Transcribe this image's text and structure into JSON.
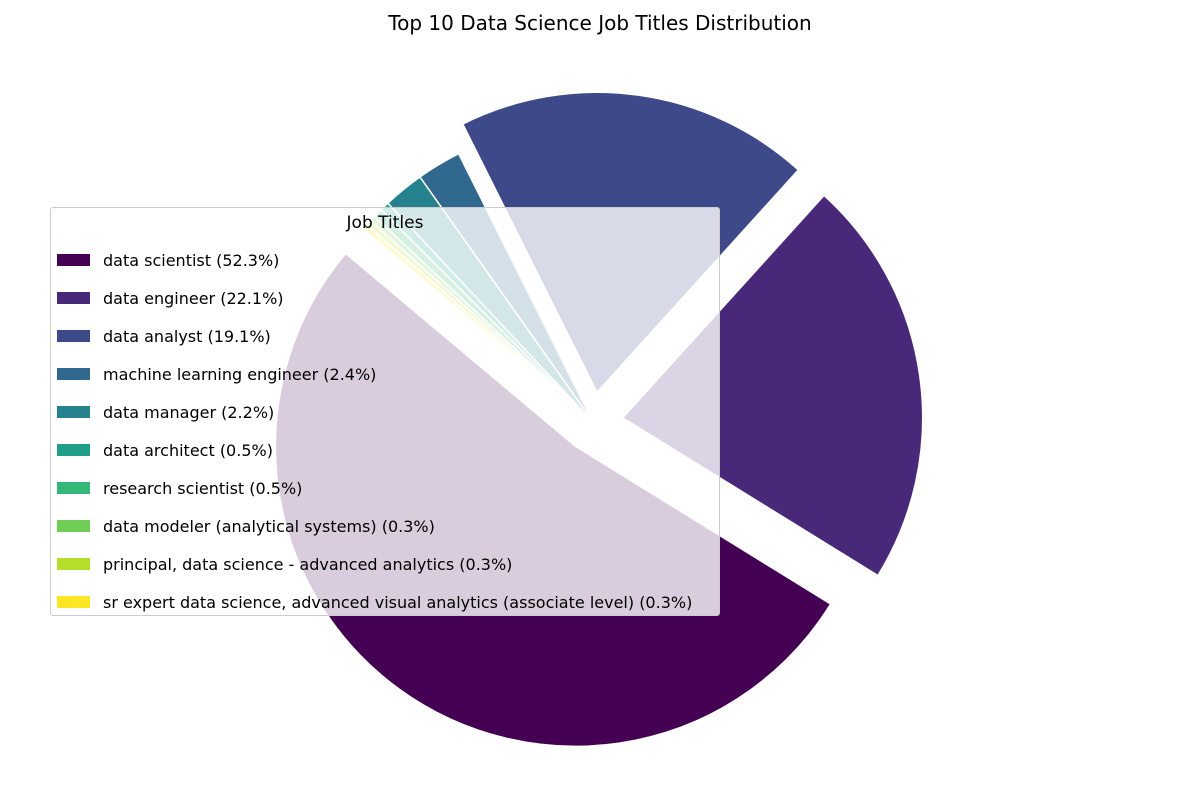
{
  "chart_data": {
    "type": "pie",
    "title": "Top 10 Data Science Job Titles Distribution",
    "legend_title": "Job Titles",
    "legend_placement": "center-left",
    "slices": [
      {
        "label": "data scientist",
        "value": 52.3,
        "label_text": "data scientist (52.3%)",
        "color": "#440154",
        "exploded": true
      },
      {
        "label": "data engineer",
        "value": 22.1,
        "label_text": "data engineer (22.1%)",
        "color": "#482878",
        "exploded": true
      },
      {
        "label": "data analyst",
        "value": 19.1,
        "label_text": "data analyst (19.1%)",
        "color": "#3e4989",
        "exploded": true
      },
      {
        "label": "machine learning engineer",
        "value": 2.4,
        "label_text": "machine learning engineer (2.4%)",
        "color": "#31688e",
        "exploded": false
      },
      {
        "label": "data manager",
        "value": 2.2,
        "label_text": "data manager (2.2%)",
        "color": "#26828e",
        "exploded": false
      },
      {
        "label": "data architect",
        "value": 0.5,
        "label_text": "data architect (0.5%)",
        "color": "#1f9e89",
        "exploded": false
      },
      {
        "label": "research scientist",
        "value": 0.5,
        "label_text": "research scientist (0.5%)",
        "color": "#35b779",
        "exploded": false
      },
      {
        "label": "data modeler (analytical systems)",
        "value": 0.3,
        "label_text": "data modeler (analytical systems) (0.3%)",
        "color": "#6ece58",
        "exploded": false
      },
      {
        "label": "principal, data science - advanced analytics",
        "value": 0.3,
        "label_text": "principal, data science - advanced analytics (0.3%)",
        "color": "#b5de2b",
        "exploded": false
      },
      {
        "label": "sr expert data science, advanced visual analytics (associate level)",
        "value": 0.3,
        "label_text": "sr expert data science, advanced visual analytics (associate level) (0.3%)",
        "color": "#fde725",
        "exploded": false
      }
    ]
  }
}
